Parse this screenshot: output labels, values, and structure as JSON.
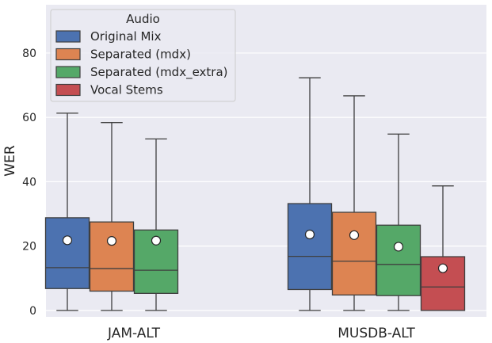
{
  "chart_data": {
    "type": "box",
    "title": "",
    "xlabel": "",
    "ylabel": "WER",
    "ylim": [
      -2,
      95
    ],
    "yticks": [
      0,
      20,
      40,
      60,
      80
    ],
    "grid": true,
    "categories": [
      "JAM-ALT",
      "MUSDB-ALT"
    ],
    "legend": {
      "title": "Audio",
      "placement": "top-left"
    },
    "series": [
      {
        "name": "Original Mix",
        "color": "#4c72b0",
        "boxes": [
          {
            "category": "JAM-ALT",
            "min": 0,
            "q1": 6.8,
            "median": 13.3,
            "q3": 28.8,
            "max": 61.3,
            "mean": 21.8
          },
          {
            "category": "MUSDB-ALT",
            "min": 0,
            "q1": 6.5,
            "median": 16.8,
            "q3": 33.2,
            "max": 72.3,
            "mean": 23.6
          }
        ]
      },
      {
        "name": "Separated (mdx)",
        "color": "#dd8452",
        "boxes": [
          {
            "category": "JAM-ALT",
            "min": 0,
            "q1": 6.0,
            "median": 13.0,
            "q3": 27.5,
            "max": 58.4,
            "mean": 21.6
          },
          {
            "category": "MUSDB-ALT",
            "min": 0,
            "q1": 4.8,
            "median": 15.3,
            "q3": 30.5,
            "max": 66.7,
            "mean": 23.4
          }
        ]
      },
      {
        "name": "Separated (mdx_extra)",
        "color": "#55a868",
        "boxes": [
          {
            "category": "JAM-ALT",
            "min": 0,
            "q1": 5.3,
            "median": 12.5,
            "q3": 25.0,
            "max": 53.3,
            "mean": 21.7
          },
          {
            "category": "MUSDB-ALT",
            "min": 0,
            "q1": 4.6,
            "median": 14.3,
            "q3": 26.5,
            "max": 54.8,
            "mean": 19.8
          }
        ]
      },
      {
        "name": "Vocal Stems",
        "color": "#c44e52",
        "boxes": [
          {
            "category": "MUSDB-ALT",
            "min": 0,
            "q1": 0,
            "median": 7.3,
            "q3": 16.7,
            "max": 38.7,
            "mean": 13.1
          }
        ]
      }
    ]
  }
}
